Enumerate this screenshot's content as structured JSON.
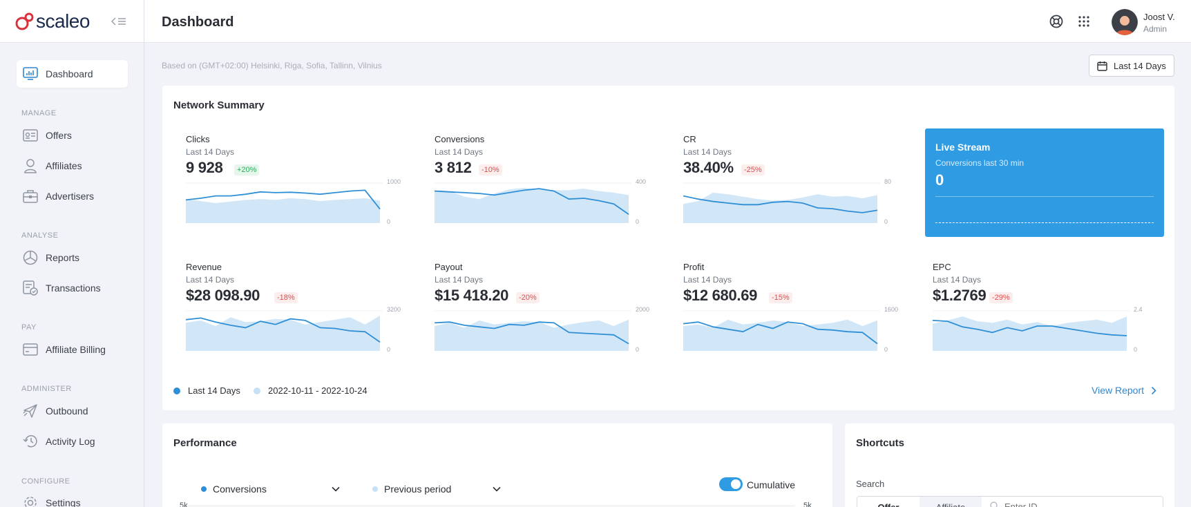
{
  "brand": {
    "name": "scaleo"
  },
  "nav": {
    "active": {
      "label": "Dashboard",
      "icon": "dashboard-icon"
    },
    "sections": [
      {
        "heading": "MANAGE",
        "items": [
          {
            "label": "Offers",
            "icon": "offers-icon"
          },
          {
            "label": "Affiliates",
            "icon": "user-icon"
          },
          {
            "label": "Advertisers",
            "icon": "briefcase-icon"
          }
        ]
      },
      {
        "heading": "ANALYSE",
        "items": [
          {
            "label": "Reports",
            "icon": "pie-chart-icon"
          },
          {
            "label": "Transactions",
            "icon": "transactions-icon"
          }
        ]
      },
      {
        "heading": "PAY",
        "items": [
          {
            "label": "Affiliate Billing",
            "icon": "credit-card-icon"
          }
        ]
      },
      {
        "heading": "ADMINISTER",
        "items": [
          {
            "label": "Outbound",
            "icon": "paper-plane-icon"
          },
          {
            "label": "Activity Log",
            "icon": "history-icon"
          }
        ]
      },
      {
        "heading": "CONFIGURE",
        "items": [
          {
            "label": "Settings",
            "icon": "gear-icon"
          }
        ]
      }
    ]
  },
  "topbar": {
    "title": "Dashboard",
    "user": {
      "name": "Joost V.",
      "role": "Admin"
    }
  },
  "subheader": {
    "timezone": "Based on (GMT+02:00) Helsinki, Riga, Sofia, Tallinn, Vilnius",
    "range_label": "Last 14 Days"
  },
  "network_summary": {
    "title": "Network Summary",
    "metrics": [
      {
        "name": "Clicks",
        "period": "Last 14 Days",
        "value": "9 928",
        "change": "+20%",
        "trend": "up",
        "axis_max": "1000",
        "axis_min": "0",
        "current": [
          0.58,
          0.62,
          0.68,
          0.68,
          0.72,
          0.78,
          0.76,
          0.77,
          0.75,
          0.72,
          0.76,
          0.8,
          0.82,
          0.35
        ],
        "previous": [
          0.6,
          0.55,
          0.5,
          0.54,
          0.58,
          0.6,
          0.58,
          0.62,
          0.6,
          0.55,
          0.58,
          0.6,
          0.62,
          0.56
        ]
      },
      {
        "name": "Conversions",
        "period": "Last 14 Days",
        "value": "3 812",
        "change": "-10%",
        "trend": "down",
        "axis_max": "400",
        "axis_min": "0",
        "current": [
          0.8,
          0.78,
          0.76,
          0.74,
          0.7,
          0.76,
          0.82,
          0.86,
          0.8,
          0.6,
          0.62,
          0.56,
          0.48,
          0.22
        ],
        "previous": [
          0.82,
          0.8,
          0.66,
          0.6,
          0.74,
          0.84,
          0.88,
          0.84,
          0.82,
          0.82,
          0.86,
          0.8,
          0.76,
          0.7
        ]
      },
      {
        "name": "CR",
        "period": "Last 14 Days",
        "value": "38.40%",
        "change": "-25%",
        "trend": "down",
        "axis_max": "80",
        "axis_min": "0",
        "current": [
          0.68,
          0.6,
          0.54,
          0.5,
          0.46,
          0.46,
          0.52,
          0.54,
          0.5,
          0.38,
          0.36,
          0.3,
          0.26,
          0.32
        ],
        "previous": [
          0.48,
          0.55,
          0.76,
          0.72,
          0.66,
          0.6,
          0.56,
          0.58,
          0.64,
          0.72,
          0.66,
          0.68,
          0.62,
          0.7
        ]
      },
      {
        "name": "Revenue",
        "period": "Last 14 Days",
        "value": "$28 098.90",
        "change": "-18%",
        "trend": "down",
        "axis_max": "3200",
        "axis_min": "0",
        "current": [
          0.78,
          0.82,
          0.72,
          0.64,
          0.58,
          0.74,
          0.66,
          0.8,
          0.76,
          0.58,
          0.56,
          0.5,
          0.48,
          0.22
        ],
        "previous": [
          0.7,
          0.76,
          0.62,
          0.84,
          0.72,
          0.74,
          0.8,
          0.78,
          0.66,
          0.72,
          0.78,
          0.84,
          0.66,
          0.88
        ]
      },
      {
        "name": "Payout",
        "period": "Last 14 Days",
        "value": "$15 418.20",
        "change": "-20%",
        "trend": "down",
        "axis_max": "2000",
        "axis_min": "0",
        "current": [
          0.7,
          0.72,
          0.64,
          0.6,
          0.56,
          0.66,
          0.64,
          0.72,
          0.7,
          0.46,
          0.44,
          0.42,
          0.4,
          0.18
        ],
        "previous": [
          0.62,
          0.7,
          0.58,
          0.76,
          0.66,
          0.7,
          0.74,
          0.72,
          0.58,
          0.66,
          0.72,
          0.76,
          0.62,
          0.78
        ]
      },
      {
        "name": "Profit",
        "period": "Last 14 Days",
        "value": "$12 680.69",
        "change": "-15%",
        "trend": "down",
        "axis_max": "1600",
        "axis_min": "0",
        "current": [
          0.68,
          0.72,
          0.6,
          0.54,
          0.48,
          0.66,
          0.56,
          0.72,
          0.68,
          0.54,
          0.52,
          0.48,
          0.46,
          0.18
        ],
        "previous": [
          0.62,
          0.66,
          0.58,
          0.78,
          0.66,
          0.7,
          0.76,
          0.72,
          0.62,
          0.66,
          0.7,
          0.78,
          0.62,
          0.76
        ]
      },
      {
        "name": "EPC",
        "period": "Last 14 Days",
        "value": "$1.2769",
        "change": "-29%",
        "trend": "down",
        "axis_max": "2.4",
        "axis_min": "0",
        "current": [
          0.76,
          0.74,
          0.6,
          0.54,
          0.46,
          0.58,
          0.5,
          0.62,
          0.62,
          0.56,
          0.5,
          0.44,
          0.4,
          0.38
        ],
        "previous": [
          0.68,
          0.76,
          0.86,
          0.74,
          0.7,
          0.78,
          0.66,
          0.72,
          0.62,
          0.7,
          0.74,
          0.78,
          0.7,
          0.86
        ]
      }
    ],
    "live_stream": {
      "title": "Live Stream",
      "subtitle": "Conversions last 30 min",
      "value": "0"
    },
    "legend": {
      "current": "Last 14 Days",
      "previous": "2022-10-11 - 2022-10-24"
    },
    "view_report": "View Report",
    "colors": {
      "current": "#2f8fd6",
      "previous": "#c6e1f6"
    }
  },
  "performance": {
    "title": "Performance",
    "metric_select": "Conversions",
    "compare_select": "Previous period",
    "cumulative_label": "Cumulative",
    "cumulative_on": true,
    "axis_left_top": "5k",
    "axis_right_top": "5k"
  },
  "shortcuts": {
    "title": "Shortcuts",
    "search_label": "Search",
    "tabs": [
      "Offer",
      "Affiliate"
    ],
    "placeholder": "Enter ID"
  }
}
